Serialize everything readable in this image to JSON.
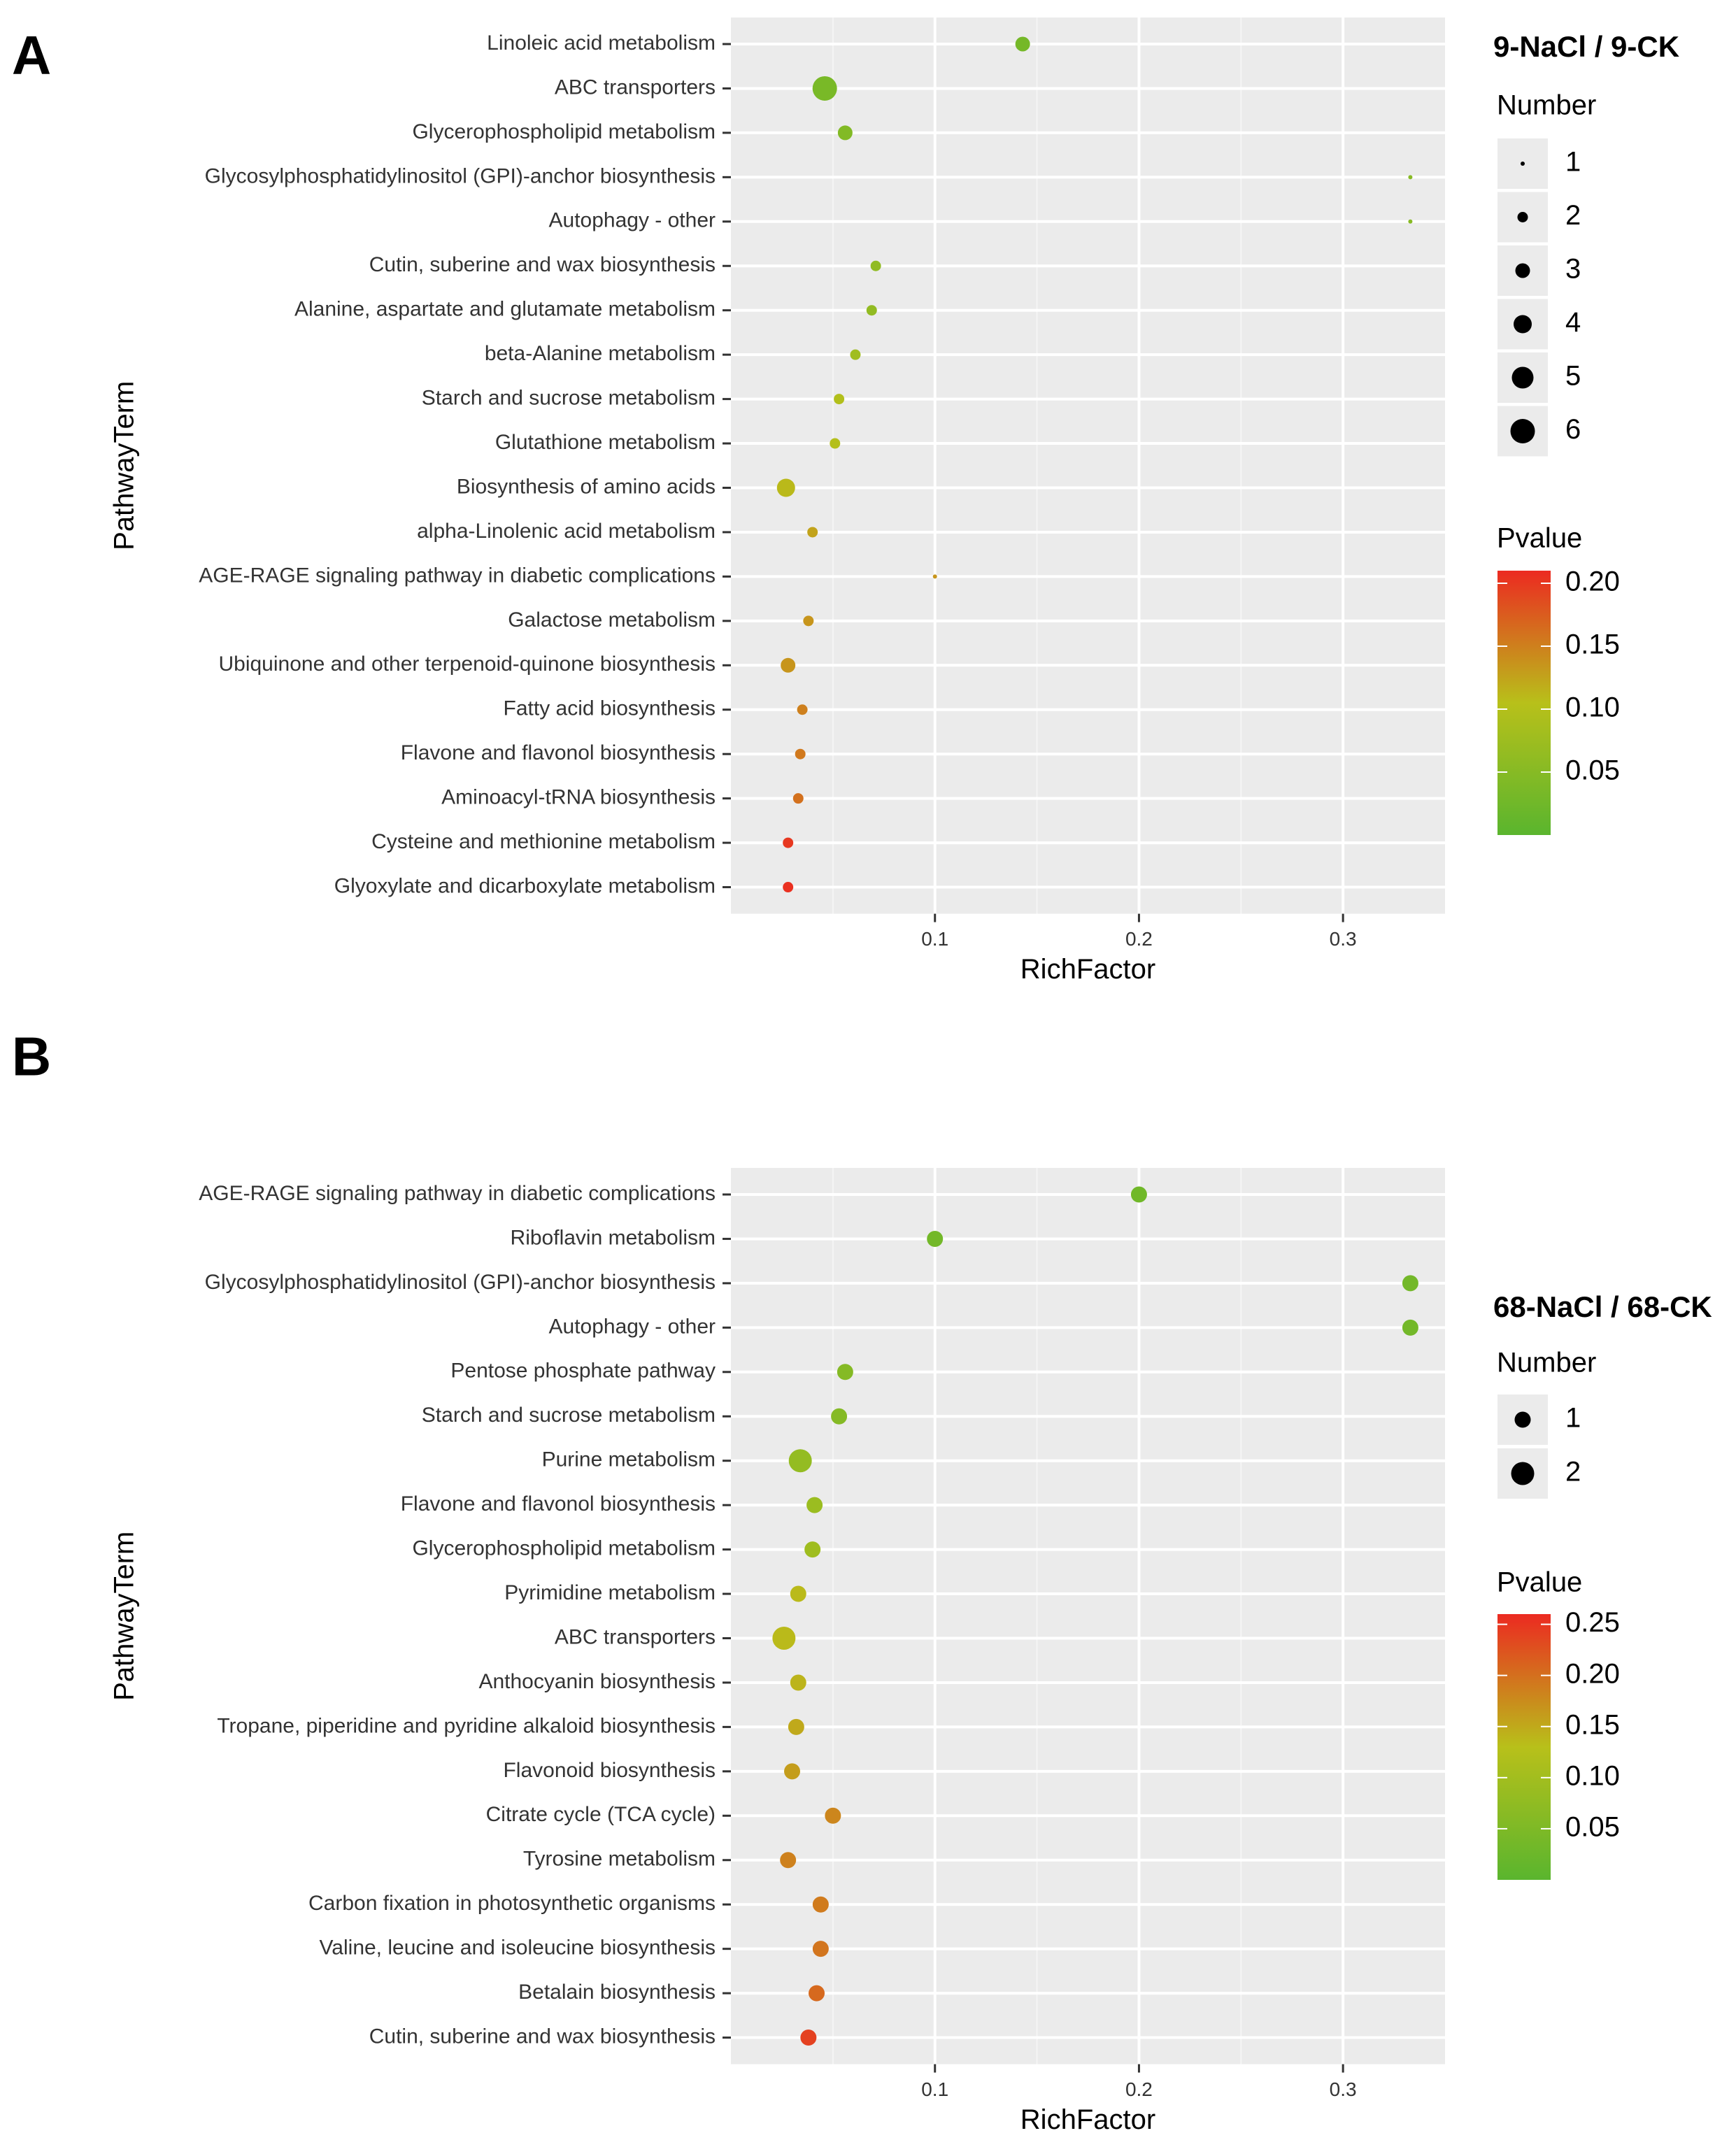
{
  "chart_data": [
    {
      "panel_label": "A",
      "type": "scatter",
      "comparison_title": "9-NaCl / 9-CK",
      "xlabel": "RichFactor",
      "ylabel": "PathwayTerm",
      "xlim": [
        0.0,
        0.35
      ],
      "xticks": [
        "0.1",
        "0.2",
        "0.3"
      ],
      "grid": true,
      "size_legend": {
        "title": "Number",
        "values": [
          "1",
          "2",
          "3",
          "4",
          "5",
          "6"
        ]
      },
      "color_legend": {
        "title": "Pvalue",
        "ticks": [
          "0.20",
          "0.15",
          "0.10",
          "0.05"
        ],
        "range": [
          0.0,
          0.21
        ],
        "colors": {
          "low": "#5ab52e",
          "mid": "#b8c01a",
          "high": "#ec2a21"
        }
      },
      "points": [
        {
          "term": "Linoleic acid metabolism",
          "rich_factor": 0.143,
          "number": 3,
          "pvalue": 0.03
        },
        {
          "term": "ABC transporters",
          "rich_factor": 0.046,
          "number": 6,
          "pvalue": 0.035
        },
        {
          "term": "Glycerophospholipid metabolism",
          "rich_factor": 0.056,
          "number": 3,
          "pvalue": 0.045
        },
        {
          "term": "Glycosylphosphatidylinositol (GPI)-anchor biosynthesis",
          "rich_factor": 0.333,
          "number": 1,
          "pvalue": 0.05
        },
        {
          "term": "Autophagy - other",
          "rich_factor": 0.333,
          "number": 1,
          "pvalue": 0.05
        },
        {
          "term": "Cutin, suberine and wax biosynthesis",
          "rich_factor": 0.071,
          "number": 2,
          "pvalue": 0.06
        },
        {
          "term": "Alanine, aspartate and glutamate metabolism",
          "rich_factor": 0.069,
          "number": 2,
          "pvalue": 0.062
        },
        {
          "term": "beta-Alanine metabolism",
          "rich_factor": 0.061,
          "number": 2,
          "pvalue": 0.078
        },
        {
          "term": "Starch and sucrose metabolism",
          "rich_factor": 0.053,
          "number": 2,
          "pvalue": 0.098
        },
        {
          "term": "Glutathione metabolism",
          "rich_factor": 0.051,
          "number": 2,
          "pvalue": 0.1
        },
        {
          "term": "Biosynthesis of amino acids",
          "rich_factor": 0.027,
          "number": 4,
          "pvalue": 0.11
        },
        {
          "term": "alpha-Linolenic acid metabolism",
          "rich_factor": 0.04,
          "number": 2,
          "pvalue": 0.125
        },
        {
          "term": "AGE-RAGE signaling pathway in diabetic complications",
          "rich_factor": 0.1,
          "number": 1,
          "pvalue": 0.135
        },
        {
          "term": "Galactose metabolism",
          "rich_factor": 0.038,
          "number": 2,
          "pvalue": 0.135
        },
        {
          "term": "Ubiquinone and other terpenoid-quinone biosynthesis",
          "rich_factor": 0.028,
          "number": 3,
          "pvalue": 0.135
        },
        {
          "term": "Fatty acid biosynthesis",
          "rich_factor": 0.035,
          "number": 2,
          "pvalue": 0.15
        },
        {
          "term": "Flavone and flavonol biosynthesis",
          "rich_factor": 0.034,
          "number": 2,
          "pvalue": 0.155
        },
        {
          "term": "Aminoacyl-tRNA biosynthesis",
          "rich_factor": 0.033,
          "number": 2,
          "pvalue": 0.16
        },
        {
          "term": "Cysteine and methionine metabolism",
          "rich_factor": 0.028,
          "number": 2,
          "pvalue": 0.2
        },
        {
          "term": "Glyoxylate and dicarboxylate metabolism",
          "rich_factor": 0.028,
          "number": 2,
          "pvalue": 0.205
        }
      ]
    },
    {
      "panel_label": "B",
      "type": "scatter",
      "comparison_title": "68-NaCl / 68-CK",
      "xlabel": "RichFactor",
      "ylabel": "PathwayTerm",
      "xlim": [
        0.0,
        0.35
      ],
      "xticks": [
        "0.1",
        "0.2",
        "0.3"
      ],
      "grid": true,
      "size_legend": {
        "title": "Number",
        "values": [
          "1",
          "2"
        ]
      },
      "color_legend": {
        "title": "Pvalue",
        "ticks": [
          "0.25",
          "0.20",
          "0.15",
          "0.10",
          "0.05"
        ],
        "range": [
          0.0,
          0.26
        ],
        "colors": {
          "low": "#5ab52e",
          "mid": "#b8c01a",
          "high": "#ec2a21"
        }
      },
      "points": [
        {
          "term": "AGE-RAGE signaling pathway in diabetic complications",
          "rich_factor": 0.2,
          "number": 1,
          "pvalue": 0.03
        },
        {
          "term": "Riboflavin metabolism",
          "rich_factor": 0.1,
          "number": 1,
          "pvalue": 0.035
        },
        {
          "term": "Glycosylphosphatidylinositol (GPI)-anchor biosynthesis",
          "rich_factor": 0.333,
          "number": 1,
          "pvalue": 0.035
        },
        {
          "term": "Autophagy - other",
          "rich_factor": 0.333,
          "number": 1,
          "pvalue": 0.035
        },
        {
          "term": "Pentose phosphate pathway",
          "rich_factor": 0.056,
          "number": 1,
          "pvalue": 0.06
        },
        {
          "term": "Starch and sucrose metabolism",
          "rich_factor": 0.053,
          "number": 1,
          "pvalue": 0.06
        },
        {
          "term": "Purine metabolism",
          "rich_factor": 0.034,
          "number": 2,
          "pvalue": 0.08
        },
        {
          "term": "Flavone and flavonol biosynthesis",
          "rich_factor": 0.041,
          "number": 1,
          "pvalue": 0.09
        },
        {
          "term": "Glycerophospholipid metabolism",
          "rich_factor": 0.04,
          "number": 1,
          "pvalue": 0.095
        },
        {
          "term": "Pyrimidine metabolism",
          "rich_factor": 0.033,
          "number": 1,
          "pvalue": 0.135
        },
        {
          "term": "ABC transporters",
          "rich_factor": 0.026,
          "number": 2,
          "pvalue": 0.135
        },
        {
          "term": "Anthocyanin biosynthesis",
          "rich_factor": 0.033,
          "number": 1,
          "pvalue": 0.14
        },
        {
          "term": "Tropane, piperidine and pyridine alkaloid biosynthesis",
          "rich_factor": 0.032,
          "number": 1,
          "pvalue": 0.15
        },
        {
          "term": "Flavonoid biosynthesis",
          "rich_factor": 0.03,
          "number": 1,
          "pvalue": 0.16
        },
        {
          "term": "Citrate cycle (TCA cycle)",
          "rich_factor": 0.05,
          "number": 1,
          "pvalue": 0.18
        },
        {
          "term": "Tyrosine metabolism",
          "rich_factor": 0.028,
          "number": 1,
          "pvalue": 0.185
        },
        {
          "term": "Carbon fixation in photosynthetic organisms",
          "rich_factor": 0.044,
          "number": 1,
          "pvalue": 0.19
        },
        {
          "term": "Valine, leucine and isoleucine biosynthesis",
          "rich_factor": 0.044,
          "number": 1,
          "pvalue": 0.195
        },
        {
          "term": "Betalain biosynthesis",
          "rich_factor": 0.042,
          "number": 1,
          "pvalue": 0.205
        },
        {
          "term": "Cutin, suberine and wax biosynthesis",
          "rich_factor": 0.038,
          "number": 1,
          "pvalue": 0.24
        }
      ]
    }
  ]
}
